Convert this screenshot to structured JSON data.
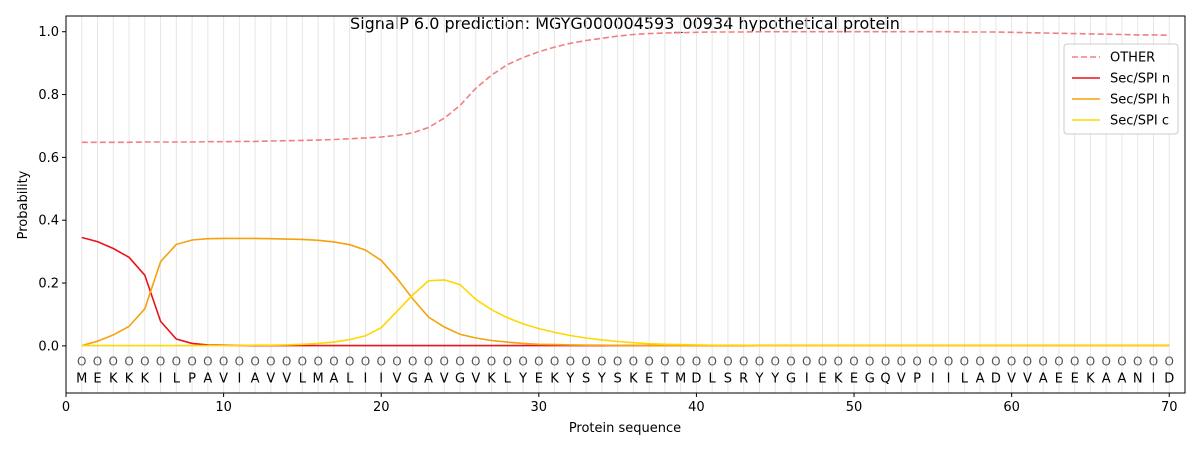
{
  "chart_data": {
    "type": "line",
    "title": "SignalP 6.0 prediction: MGYG000004593_00934 hypothetical protein",
    "xlabel": "Protein sequence",
    "ylabel": "Probability",
    "xlim": [
      0,
      71
    ],
    "ylim": [
      -0.15,
      1.05
    ],
    "xticks": [
      0,
      10,
      20,
      30,
      40,
      50,
      60,
      70
    ],
    "yticks": [
      0.0,
      0.2,
      0.4,
      0.6,
      0.8,
      1.0
    ],
    "legend_position": "top-right",
    "sequence": [
      "M",
      "E",
      "K",
      "K",
      "K",
      "I",
      "L",
      "P",
      "A",
      "V",
      "I",
      "A",
      "V",
      "V",
      "L",
      "M",
      "A",
      "L",
      "I",
      "I",
      "V",
      "G",
      "A",
      "V",
      "G",
      "V",
      "K",
      "L",
      "Y",
      "E",
      "K",
      "Y",
      "S",
      "Y",
      "S",
      "K",
      "E",
      "T",
      "M",
      "D",
      "L",
      "S",
      "R",
      "Y",
      "Y",
      "G",
      "I",
      "E",
      "K",
      "E",
      "G",
      "Q",
      "V",
      "P",
      "I",
      "I",
      "L",
      "A",
      "D",
      "V",
      "V",
      "A",
      "E",
      "E",
      "K",
      "A",
      "A",
      "N",
      "I",
      "D"
    ],
    "predicted_labels": [
      "O",
      "O",
      "O",
      "O",
      "O",
      "O",
      "O",
      "O",
      "O",
      "O",
      "O",
      "O",
      "O",
      "O",
      "O",
      "O",
      "O",
      "O",
      "O",
      "O",
      "O",
      "O",
      "O",
      "O",
      "O",
      "O",
      "O",
      "O",
      "O",
      "O",
      "O",
      "O",
      "O",
      "O",
      "O",
      "O",
      "O",
      "O",
      "O",
      "O",
      "O",
      "O",
      "O",
      "O",
      "O",
      "O",
      "O",
      "O",
      "O",
      "O",
      "O",
      "O",
      "O",
      "O",
      "O",
      "O",
      "O",
      "O",
      "O",
      "O",
      "O",
      "O",
      "O",
      "O",
      "O",
      "O",
      "O",
      "O",
      "O",
      "O"
    ],
    "series": [
      {
        "name": "OTHER",
        "color": "#f08080",
        "dashed": true,
        "values": [
          0.648,
          0.648,
          0.648,
          0.648,
          0.649,
          0.649,
          0.649,
          0.649,
          0.65,
          0.65,
          0.651,
          0.651,
          0.652,
          0.653,
          0.654,
          0.655,
          0.657,
          0.659,
          0.662,
          0.665,
          0.67,
          0.678,
          0.695,
          0.725,
          0.765,
          0.82,
          0.862,
          0.895,
          0.918,
          0.936,
          0.951,
          0.963,
          0.972,
          0.979,
          0.986,
          0.991,
          0.994,
          0.996,
          0.997,
          0.998,
          0.999,
          0.999,
          0.999,
          1.0,
          1.0,
          1.0,
          1.0,
          1.0,
          1.0,
          1.0,
          1.0,
          1.0,
          1.0,
          1.0,
          1.0,
          1.0,
          0.999,
          0.999,
          0.999,
          0.998,
          0.997,
          0.996,
          0.995,
          0.994,
          0.993,
          0.992,
          0.991,
          0.99,
          0.99,
          0.989
        ]
      },
      {
        "name": "Sec/SPI n",
        "color": "#e8141c",
        "dashed": false,
        "values": [
          0.345,
          0.332,
          0.31,
          0.282,
          0.225,
          0.078,
          0.022,
          0.008,
          0.003,
          0.002,
          0.001,
          0.001,
          0.001,
          0.001,
          0.001,
          0.001,
          0.001,
          0.001,
          0.001,
          0.001,
          0.001,
          0.001,
          0.001,
          0.001,
          0.001,
          0.001,
          0.001,
          0.001,
          0.001,
          0.001,
          0.001,
          0.001,
          0.001,
          0.001,
          0.001,
          0.001,
          0.001,
          0.001,
          0.001,
          0.001,
          0.001,
          0.001,
          0.001,
          0.001,
          0.001,
          0.001,
          0.001,
          0.001,
          0.001,
          0.001,
          0.001,
          0.001,
          0.001,
          0.001,
          0.001,
          0.001,
          0.001,
          0.001,
          0.001,
          0.001,
          0.001,
          0.001,
          0.001,
          0.001,
          0.001,
          0.001,
          0.001,
          0.001,
          0.001,
          0.001
        ]
      },
      {
        "name": "Sec/SPI h",
        "color": "#f5a20c",
        "dashed": false,
        "values": [
          0.001,
          0.015,
          0.035,
          0.062,
          0.118,
          0.268,
          0.323,
          0.337,
          0.341,
          0.342,
          0.342,
          0.342,
          0.341,
          0.34,
          0.339,
          0.336,
          0.331,
          0.322,
          0.305,
          0.272,
          0.215,
          0.15,
          0.092,
          0.06,
          0.037,
          0.025,
          0.017,
          0.012,
          0.008,
          0.005,
          0.004,
          0.003,
          0.002,
          0.002,
          0.001,
          0.001,
          0.001,
          0.001,
          0.001,
          0.001,
          0.001,
          0.001,
          0.001,
          0.001,
          0.001,
          0.001,
          0.001,
          0.001,
          0.001,
          0.001,
          0.001,
          0.001,
          0.001,
          0.001,
          0.001,
          0.001,
          0.001,
          0.001,
          0.001,
          0.001,
          0.001,
          0.001,
          0.001,
          0.001,
          0.001,
          0.001,
          0.001,
          0.001,
          0.001,
          0.001
        ]
      },
      {
        "name": "Sec/SPI c",
        "color": "#ffd700",
        "dashed": false,
        "values": [
          0.001,
          0.001,
          0.001,
          0.001,
          0.001,
          0.001,
          0.001,
          0.001,
          0.001,
          0.001,
          0.001,
          0.002,
          0.002,
          0.003,
          0.005,
          0.008,
          0.012,
          0.02,
          0.032,
          0.058,
          0.11,
          0.162,
          0.207,
          0.21,
          0.195,
          0.148,
          0.115,
          0.09,
          0.07,
          0.055,
          0.043,
          0.033,
          0.025,
          0.019,
          0.014,
          0.01,
          0.007,
          0.005,
          0.004,
          0.003,
          0.002,
          0.002,
          0.002,
          0.001,
          0.001,
          0.001,
          0.001,
          0.001,
          0.001,
          0.001,
          0.001,
          0.001,
          0.001,
          0.001,
          0.001,
          0.001,
          0.001,
          0.001,
          0.001,
          0.001,
          0.001,
          0.001,
          0.001,
          0.001,
          0.001,
          0.001,
          0.001,
          0.001,
          0.001,
          0.001
        ]
      }
    ]
  }
}
